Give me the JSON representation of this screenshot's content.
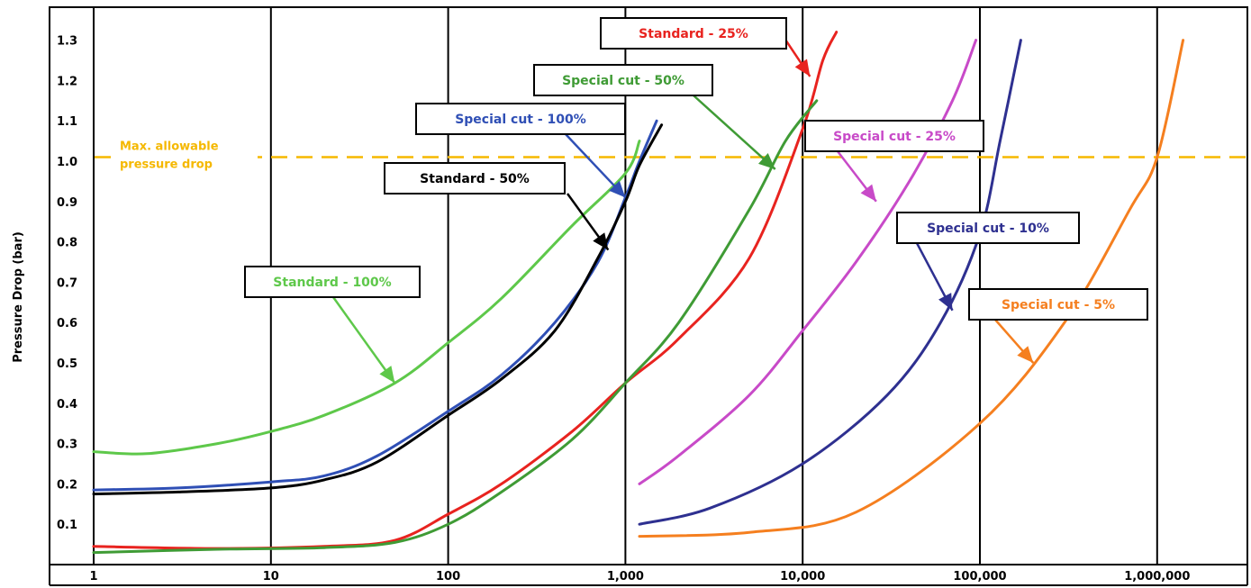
{
  "chart_data": {
    "type": "line",
    "title": "",
    "xlabel": "",
    "ylabel": "Pressure Drop (bar)",
    "xscale": "log",
    "xlim": [
      1,
      3000000
    ],
    "ylim": [
      0,
      1.33
    ],
    "x_tick_labels": [
      "1",
      "10",
      "100",
      "1,000",
      "10,000",
      "100,000",
      "1,000,000"
    ],
    "x_ticks": [
      1,
      10,
      100,
      1000,
      10000,
      100000,
      1000000
    ],
    "y_tick_labels": [
      "0.1",
      "0.2",
      "0.3",
      "0.4",
      "0.5",
      "0.6",
      "0.7",
      "0.8",
      "0.9",
      "1.0",
      "1.1",
      "1.2",
      "1.3"
    ],
    "y_ticks": [
      0.1,
      0.2,
      0.3,
      0.4,
      0.5,
      0.6,
      0.7,
      0.8,
      0.9,
      1.0,
      1.1,
      1.2,
      1.3
    ],
    "grid": "vertical lines at decades",
    "reference_line": {
      "label_line1": "Max. allowable",
      "label_line2": "pressure drop",
      "y": 1.01,
      "color": "#f5b800"
    },
    "series": [
      {
        "name": "Standard - 100%",
        "color": "#5ec84a",
        "points": [
          [
            1,
            0.28
          ],
          [
            2,
            0.275
          ],
          [
            5,
            0.3
          ],
          [
            10,
            0.33
          ],
          [
            20,
            0.37
          ],
          [
            50,
            0.45
          ],
          [
            100,
            0.55
          ],
          [
            200,
            0.66
          ],
          [
            500,
            0.84
          ],
          [
            1000,
            0.97
          ],
          [
            1200,
            1.05
          ]
        ],
        "label_box": {
          "text_color": "#5ec84a"
        },
        "arrow_tip": [
          50,
          0.45
        ]
      },
      {
        "name": "Special cut - 100%",
        "color": "#2f4fb5",
        "points": [
          [
            1,
            0.185
          ],
          [
            3,
            0.19
          ],
          [
            10,
            0.205
          ],
          [
            20,
            0.22
          ],
          [
            40,
            0.27
          ],
          [
            100,
            0.38
          ],
          [
            200,
            0.47
          ],
          [
            400,
            0.6
          ],
          [
            700,
            0.75
          ],
          [
            1000,
            0.91
          ],
          [
            1200,
            1.0
          ],
          [
            1500,
            1.1
          ]
        ],
        "label_box": {
          "text_color": "#2f4fb5"
        },
        "arrow_tip": [
          1000,
          0.91
        ]
      },
      {
        "name": "Standard - 50%",
        "color": "#000000",
        "points": [
          [
            1,
            0.175
          ],
          [
            3,
            0.18
          ],
          [
            10,
            0.19
          ],
          [
            20,
            0.21
          ],
          [
            40,
            0.255
          ],
          [
            100,
            0.37
          ],
          [
            200,
            0.46
          ],
          [
            400,
            0.58
          ],
          [
            700,
            0.76
          ],
          [
            1000,
            0.9
          ],
          [
            1200,
            0.99
          ],
          [
            1600,
            1.09
          ]
        ],
        "label_box": {
          "text_color": "#000000"
        },
        "arrow_tip": [
          800,
          0.78
        ]
      },
      {
        "name": "Standard - 25%",
        "color": "#e8231f",
        "points": [
          [
            1,
            0.045
          ],
          [
            5,
            0.04
          ],
          [
            20,
            0.045
          ],
          [
            50,
            0.06
          ],
          [
            100,
            0.125
          ],
          [
            200,
            0.2
          ],
          [
            500,
            0.33
          ],
          [
            1000,
            0.45
          ],
          [
            2000,
            0.56
          ],
          [
            5000,
            0.76
          ],
          [
            10000,
            1.08
          ],
          [
            13000,
            1.25
          ],
          [
            15500,
            1.32
          ]
        ],
        "label_box": {
          "text_color": "#e8231f"
        },
        "arrow_tip": [
          11000,
          1.21
        ]
      },
      {
        "name": "Special cut - 50%",
        "color": "#3f9b35",
        "points": [
          [
            1,
            0.03
          ],
          [
            5,
            0.038
          ],
          [
            20,
            0.042
          ],
          [
            50,
            0.055
          ],
          [
            100,
            0.1
          ],
          [
            200,
            0.18
          ],
          [
            500,
            0.31
          ],
          [
            1000,
            0.45
          ],
          [
            2000,
            0.6
          ],
          [
            5000,
            0.88
          ],
          [
            8000,
            1.05
          ],
          [
            12000,
            1.15
          ]
        ],
        "label_box": {
          "text_color": "#3f9b35"
        },
        "arrow_tip": [
          7000,
          0.98
        ]
      },
      {
        "name": "Special cut - 25%",
        "color": "#c84ac8",
        "points": [
          [
            1200,
            0.2
          ],
          [
            2000,
            0.27
          ],
          [
            5000,
            0.42
          ],
          [
            10000,
            0.58
          ],
          [
            20000,
            0.75
          ],
          [
            40000,
            0.95
          ],
          [
            70000,
            1.15
          ],
          [
            95000,
            1.3
          ]
        ],
        "label_box": {
          "text_color": "#c84ac8"
        },
        "arrow_tip": [
          26000,
          0.9
        ]
      },
      {
        "name": "Special cut - 10%",
        "color": "#2e3090",
        "points": [
          [
            1200,
            0.1
          ],
          [
            3000,
            0.14
          ],
          [
            10000,
            0.25
          ],
          [
            30000,
            0.42
          ],
          [
            60000,
            0.6
          ],
          [
            100000,
            0.82
          ],
          [
            130000,
            1.05
          ],
          [
            170000,
            1.3
          ]
        ],
        "label_box": {
          "text_color": "#2e3090"
        },
        "arrow_tip": [
          70000,
          0.63
        ]
      },
      {
        "name": "Special cut - 5%",
        "color": "#f57f1f",
        "points": [
          [
            1200,
            0.07
          ],
          [
            5000,
            0.08
          ],
          [
            20000,
            0.13
          ],
          [
            100000,
            0.35
          ],
          [
            300000,
            0.6
          ],
          [
            700000,
            0.88
          ],
          [
            1000000,
            1.01
          ],
          [
            1400000,
            1.3
          ]
        ],
        "label_box": {
          "text_color": "#f57f1f"
        },
        "arrow_tip": [
          200000,
          0.5
        ]
      }
    ]
  }
}
